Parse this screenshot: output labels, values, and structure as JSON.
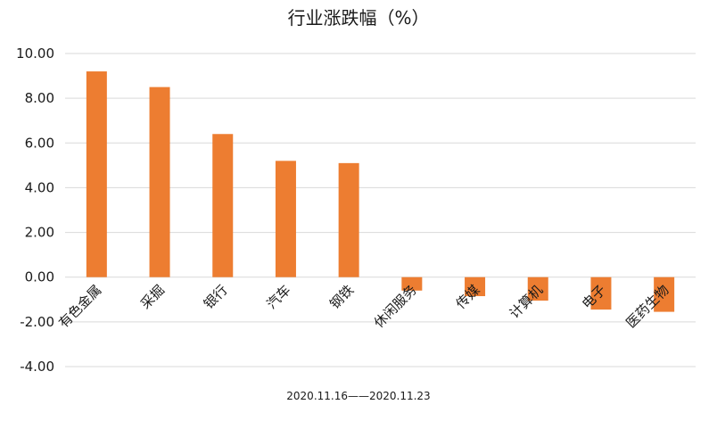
{
  "chart_data": {
    "type": "bar",
    "title": "行业涨跌幅（%）",
    "xlabel": "2020.11.16——2020.11.23",
    "ylabel": "",
    "categories": [
      "有色金属",
      "采掘",
      "银行",
      "汽车",
      "钢铁",
      "休闲服务",
      "传媒",
      "计算机",
      "电子",
      "医药生物"
    ],
    "values": [
      9.2,
      8.5,
      6.4,
      5.2,
      5.1,
      -0.6,
      -0.85,
      -1.05,
      -1.45,
      -1.55
    ],
    "ylim": [
      -4,
      10
    ],
    "yticks": [
      "10.00",
      "8.00",
      "6.00",
      "4.00",
      "2.00",
      "0.00",
      "-2.00",
      "-4.00"
    ],
    "ytick_values": [
      10,
      8,
      6,
      4,
      2,
      0,
      -2,
      -4
    ],
    "grid": true,
    "legend": "none",
    "bar_color": "#ED7D31"
  }
}
